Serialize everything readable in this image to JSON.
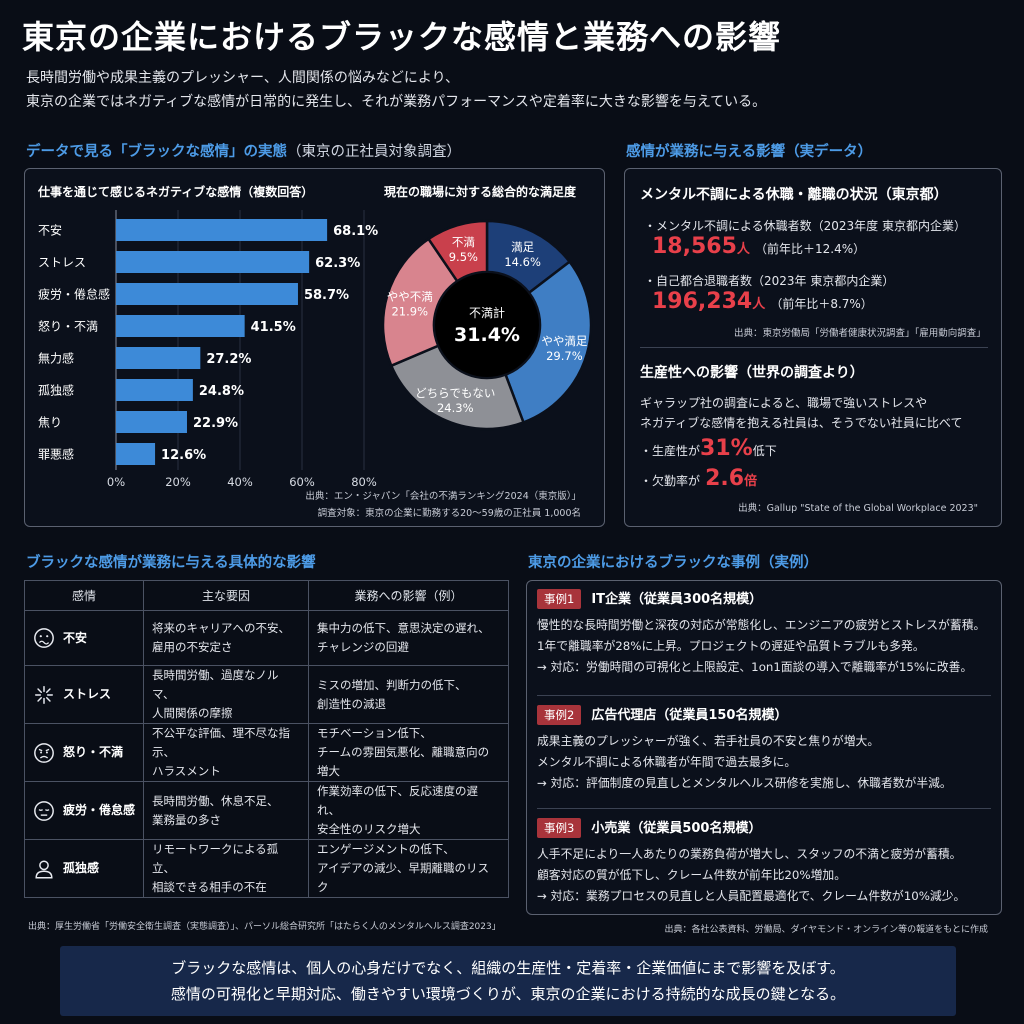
{
  "header": {
    "title": "東京の企業におけるブラックな感情と業務への影響",
    "subtitle_line1": "長時間労働や成果主義のプレッシャー、人間関係の悩みなどにより、",
    "subtitle_line2": "東京の企業ではネガティブな感情が日常的に発生し、それが業務パフォーマンスや定着率に大きな影響を与えている。"
  },
  "section1": {
    "title": "データで見る「ブラックな感情」の実態",
    "title_suffix": "（東京の正社員対象調査）"
  },
  "chart_data": [
    {
      "type": "bar",
      "orientation": "horizontal",
      "title": "仕事を通じて感じるネガティブな感情（複数回答）",
      "categories": [
        "不安",
        "ストレス",
        "疲労・倦怠感",
        "怒り・不満",
        "無力感",
        "孤独感",
        "焦り",
        "罪悪感"
      ],
      "values": [
        68.1,
        62.3,
        58.7,
        41.5,
        27.2,
        24.8,
        22.9,
        12.6
      ],
      "value_labels": [
        "68.1%",
        "62.3%",
        "58.7%",
        "41.5%",
        "27.2%",
        "24.8%",
        "22.9%",
        "12.6%"
      ],
      "xlim": [
        0,
        80
      ],
      "ticks": [
        "0%",
        "20%",
        "40%",
        "60%",
        "80%"
      ],
      "color": "#3d8ad8"
    },
    {
      "type": "pie",
      "donut": true,
      "title": "現在の職場に対する総合的な満足度",
      "center_label": "不満計",
      "center_value": "31.4%",
      "slices": [
        {
          "label": "満足",
          "value": 14.6,
          "display": "14.6%",
          "color": "#1d3f78"
        },
        {
          "label": "やや満足",
          "value": 29.7,
          "display": "29.7%",
          "color": "#3f7ec4"
        },
        {
          "label": "どちらでもない",
          "value": 24.3,
          "display": "24.3%",
          "color": "#8e9096"
        },
        {
          "label": "やや不満",
          "value": 21.9,
          "display": "21.9%",
          "color": "#d8848e"
        },
        {
          "label": "不満",
          "value": 9.5,
          "display": "9.5%",
          "color": "#c9404c"
        }
      ]
    }
  ],
  "chart_source": {
    "line1": "出典：エン・ジャパン「会社の不満ランキング2024（東京版）」",
    "line2": "調査対象：東京の企業に勤務する20〜59歳の正社員 1,000名"
  },
  "section2": {
    "title": "感情が業務に与える影響（実データ）",
    "mental_heading": "メンタル不調による休職・離職の状況（東京都）",
    "item1_label": "・メンタル不調による休職者数（2023年度 東京都内企業）",
    "item1_value": "18,565",
    "item1_unit": "人",
    "item1_note": "（前年比＋12.4%）",
    "item2_label": "・自己都合退職者数（2023年 東京都内企業）",
    "item2_value": "196,234",
    "item2_unit": "人",
    "item2_note": "（前年比＋8.7%）",
    "source1": "出典：東京労働局「労働者健康状況調査」「雇用動向調査」",
    "productivity_heading": "生産性への影響（世界の調査より）",
    "prod_text1": "ギャラップ社の調査によると、職場で強いストレスや",
    "prod_text2": "ネガティブな感情を抱える社員は、そうでない社員に比べて",
    "prod_item1_label": "・生産性が",
    "prod_item1_value": "31%",
    "prod_item1_suffix": "低下",
    "prod_item2_label": "・欠勤率が",
    "prod_item2_value": "2.6",
    "prod_item2_suffix": "倍",
    "source2": "出典：Gallup \"State of the Global Workplace 2023\""
  },
  "section3": {
    "title": "ブラックな感情が業務に与える具体的な影響",
    "headers": [
      "感情",
      "主な要因",
      "業務への影響（例）"
    ],
    "rows": [
      {
        "emotion": "不安",
        "icon": "anxious-face-icon",
        "cause1": "将来のキャリアへの不安、",
        "cause2": "雇用の不安定さ",
        "impact1": "集中力の低下、意思決定の遅れ、",
        "impact2": "チャレンジの回避"
      },
      {
        "emotion": "ストレス",
        "icon": "stress-burst-icon",
        "cause1": "長時間労働、過度なノルマ、",
        "cause2": "人間関係の摩擦",
        "impact1": "ミスの増加、判断力の低下、",
        "impact2": "創造性の減退"
      },
      {
        "emotion": "怒り・不満",
        "icon": "angry-face-icon",
        "cause1": "不公平な評価、理不尽な指示、",
        "cause2": "ハラスメント",
        "impact1": "モチベーション低下、",
        "impact2": "チームの雰囲気悪化、離職意向の増大"
      },
      {
        "emotion": "疲労・倦怠感",
        "icon": "tired-face-icon",
        "cause1": "長時間労働、休息不足、",
        "cause2": "業務量の多さ",
        "impact1": "作業効率の低下、反応速度の遅れ、",
        "impact2": "安全性のリスク増大"
      },
      {
        "emotion": "孤独感",
        "icon": "person-icon",
        "cause1": "リモートワークによる孤立、",
        "cause2": "相談できる相手の不在",
        "impact1": "エンゲージメントの低下、",
        "impact2": "アイデアの減少、早期離職のリスク"
      }
    ],
    "source": "出典：厚生労働省「労働安全衛生調査（実態調査）」、パーソル総合研究所「はたらく人のメンタルヘルス調査2023」"
  },
  "section4": {
    "title": "東京の企業におけるブラックな事例（実例）",
    "cases": [
      {
        "tag": "事例1",
        "name": "IT企業（従業員300名規模）",
        "line1": "慢性的な長時間労働と深夜の対応が常態化し、エンジニアの疲労とストレスが蓄積。",
        "line2": "1年で離職率が28%に上昇。プロジェクトの遅延や品質トラブルも多発。",
        "line3": "→ 対応：労働時間の可視化と上限設定、1on1面談の導入で離職率が15%に改善。"
      },
      {
        "tag": "事例2",
        "name": "広告代理店（従業員150名規模）",
        "line1": "成果主義のプレッシャーが強く、若手社員の不安と焦りが増大。",
        "line2": "メンタル不調による休職者が年間で過去最多に。",
        "line3": "→ 対応：評価制度の見直しとメンタルヘルス研修を実施し、休職者数が半減。"
      },
      {
        "tag": "事例3",
        "name": "小売業（従業員500名規模）",
        "line1": "人手不足により一人あたりの業務負荷が増大し、スタッフの不満と疲労が蓄積。",
        "line2": "顧客対応の質が低下し、クレーム件数が前年比20%増加。",
        "line3": "→ 対応：業務プロセスの見直しと人員配置最適化で、クレーム件数が10%減少。"
      }
    ],
    "source": "出典：各社公表資料、労働局、ダイヤモンド・オンライン等の報道をもとに作成"
  },
  "footer": {
    "line1": "ブラックな感情は、個人の心身だけでなく、組織の生産性・定着率・企業価値にまで影響を及ぼす。",
    "line2": "感情の可視化と早期対応、働きやすい環境づくりが、東京の企業における持続的な成長の鍵となる。"
  }
}
